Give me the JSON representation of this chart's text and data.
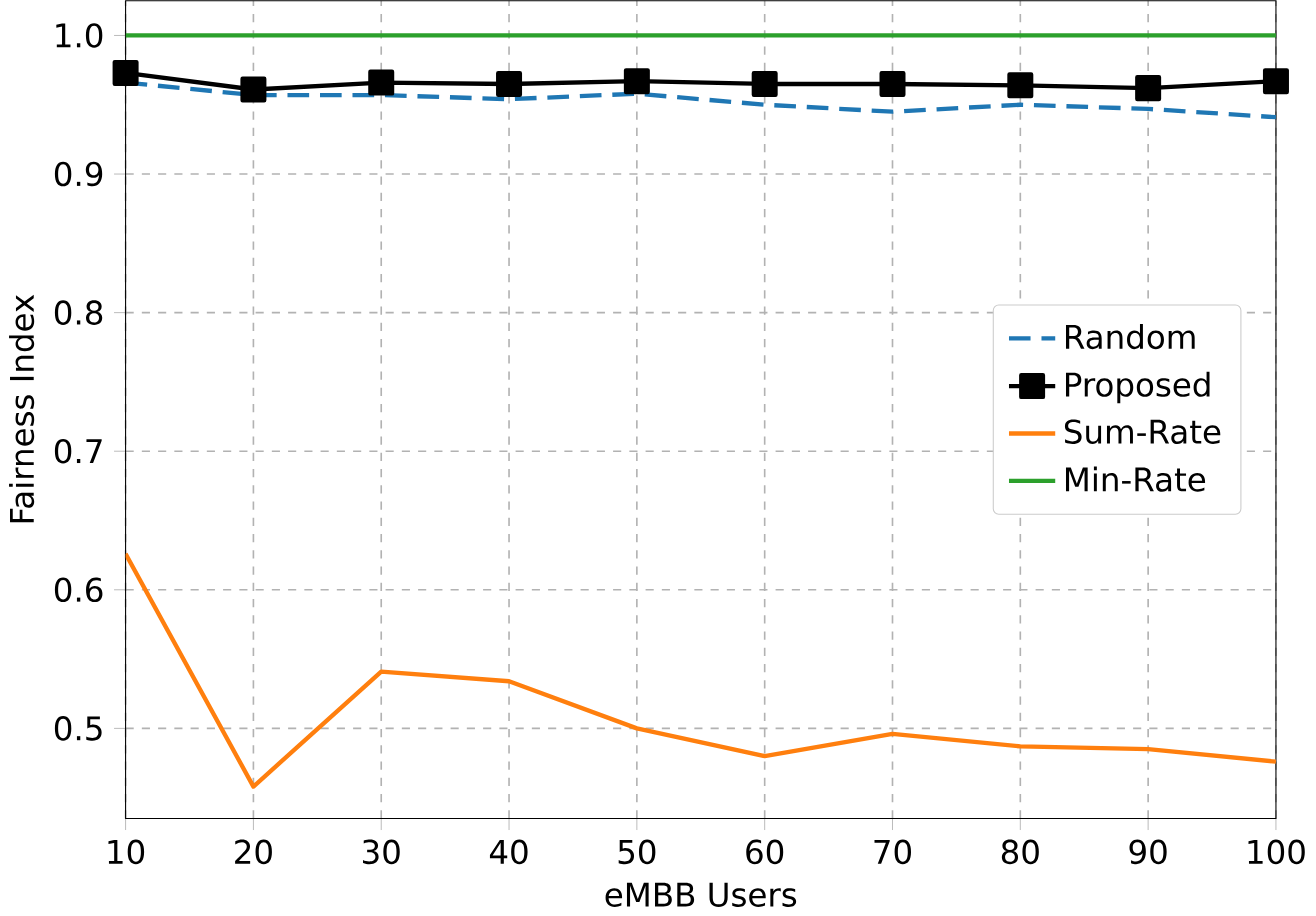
{
  "chart_data": {
    "type": "line",
    "xlabel": "eMBB Users",
    "ylabel": "Fairness Index",
    "x": [
      10,
      20,
      30,
      40,
      50,
      60,
      70,
      80,
      90,
      100
    ],
    "xlim": [
      10,
      100
    ],
    "xticks": [
      10,
      20,
      30,
      40,
      50,
      60,
      70,
      80,
      90,
      100
    ],
    "ylim": [
      0.435,
      1.025
    ],
    "yticks": [
      0.5,
      0.6,
      0.7,
      0.8,
      0.9,
      {
        "value": 1.0,
        "label": "1.0"
      }
    ],
    "grid": true,
    "legend": "right",
    "series": [
      {
        "name": "Random",
        "color": "#1f77b4",
        "line_style": "dashed",
        "marker": "none",
        "values": [
          0.966,
          0.957,
          0.957,
          0.954,
          0.958,
          0.95,
          0.945,
          0.95,
          0.947,
          0.941
        ]
      },
      {
        "name": "Proposed",
        "color": "#000000",
        "line_style": "solid",
        "marker": "square",
        "values": [
          0.973,
          0.961,
          0.966,
          0.965,
          0.967,
          0.965,
          0.965,
          0.964,
          0.962,
          0.967
        ]
      },
      {
        "name": "Sum-Rate",
        "color": "#ff7f0e",
        "line_style": "solid",
        "marker": "none",
        "values": [
          0.626,
          0.458,
          0.541,
          0.534,
          0.5,
          0.48,
          0.496,
          0.487,
          0.485,
          0.476
        ]
      },
      {
        "name": "Min-Rate",
        "color": "#2ca02c",
        "line_style": "solid",
        "marker": "none",
        "values": [
          1.0,
          1.0,
          1.0,
          1.0,
          1.0,
          1.0,
          1.0,
          1.0,
          1.0,
          1.0
        ]
      }
    ]
  }
}
